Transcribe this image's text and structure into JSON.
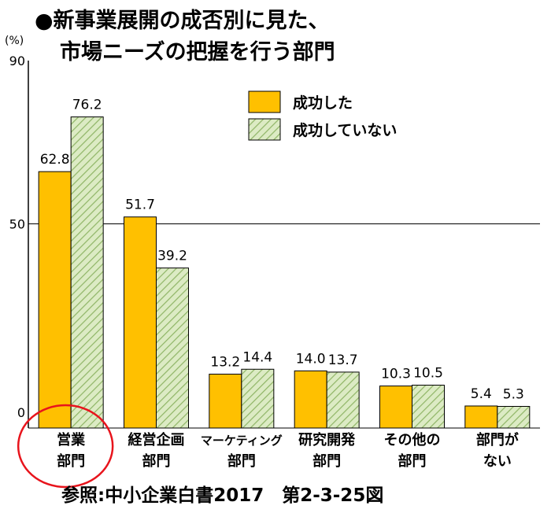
{
  "title_lines": [
    "●新事業展開の成否別に見た、",
    "市場ニーズの把握を行う部門"
  ],
  "source": "参照:中小企業白書2017　第2-3-25図",
  "chart_data": {
    "type": "bar",
    "title": "●新事業展開の成否別に見た、市場ニーズの把握を行う部門",
    "ylabel": "(%)",
    "ylim": [
      0,
      90
    ],
    "yticks": [
      0,
      50,
      90
    ],
    "gridlines": [
      50
    ],
    "legend_position": "top-right",
    "categories": [
      [
        "営業",
        "部門"
      ],
      [
        "経営企画",
        "部門"
      ],
      [
        "マーケティング",
        "部門"
      ],
      [
        "研究開発",
        "部門"
      ],
      [
        "その他の",
        "部門"
      ],
      [
        "部門が",
        "ない"
      ]
    ],
    "series": [
      {
        "name": "成功した",
        "color": "#FFC000",
        "pattern": "solid",
        "values": [
          62.8,
          51.7,
          13.2,
          14.0,
          10.3,
          5.4
        ],
        "labels": [
          "62.8",
          "51.7",
          "13.2",
          "14.0",
          "10.3",
          "5.4"
        ]
      },
      {
        "name": "成功していない",
        "color": "#C6DFA6",
        "pattern": "hatch",
        "values": [
          76.2,
          39.2,
          14.4,
          13.7,
          10.5,
          5.3
        ],
        "labels": [
          "76.2",
          "39.2",
          "14.4",
          "13.7",
          "10.5",
          "5.3"
        ]
      }
    ],
    "highlight": "営業部門"
  },
  "colors": {
    "axis": "#000000",
    "highlight_circle": "#E8141C",
    "bar_outline": "#000000"
  }
}
